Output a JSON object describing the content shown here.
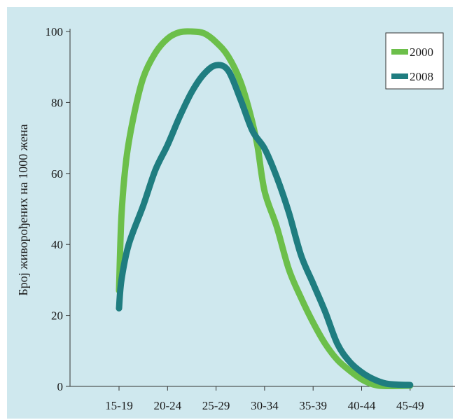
{
  "chart_data": {
    "type": "line",
    "title": "",
    "xlabel": "",
    "ylabel": "Број живорођених на 1000 жена",
    "categories": [
      "15-19",
      "20-24",
      "25-29",
      "30-34",
      "35-39",
      "40-44",
      "45-49"
    ],
    "ylim": [
      0,
      100
    ],
    "yticks": [
      0,
      20,
      40,
      60,
      80,
      100
    ],
    "grid": false,
    "legend_position": "top-right",
    "series": [
      {
        "name": "2000",
        "color": "#6cbf4a",
        "points": [
          [
            0.0,
            27
          ],
          [
            0.05,
            48
          ],
          [
            0.15,
            64
          ],
          [
            0.3,
            76
          ],
          [
            0.5,
            87
          ],
          [
            0.75,
            94
          ],
          [
            1.0,
            98
          ],
          [
            1.25,
            99.8
          ],
          [
            1.5,
            100
          ],
          [
            1.75,
            99.5
          ],
          [
            2.0,
            97
          ],
          [
            2.25,
            93
          ],
          [
            2.5,
            86
          ],
          [
            2.7,
            77
          ],
          [
            2.85,
            68
          ],
          [
            3.0,
            55
          ],
          [
            3.25,
            45
          ],
          [
            3.5,
            33
          ],
          [
            3.75,
            25
          ],
          [
            4.0,
            18
          ],
          [
            4.25,
            12
          ],
          [
            4.5,
            7.5
          ],
          [
            4.75,
            4.5
          ],
          [
            5.0,
            2
          ],
          [
            5.25,
            0.5
          ],
          [
            5.5,
            0.1
          ],
          [
            6.0,
            0.2
          ]
        ]
      },
      {
        "name": "2008",
        "color": "#1f7d80",
        "points": [
          [
            0.0,
            22
          ],
          [
            0.05,
            30
          ],
          [
            0.2,
            40
          ],
          [
            0.5,
            51
          ],
          [
            0.75,
            61
          ],
          [
            1.0,
            68
          ],
          [
            1.25,
            76
          ],
          [
            1.5,
            83
          ],
          [
            1.75,
            88
          ],
          [
            2.0,
            90.5
          ],
          [
            2.25,
            89
          ],
          [
            2.5,
            81
          ],
          [
            2.75,
            72
          ],
          [
            3.0,
            67
          ],
          [
            3.25,
            59
          ],
          [
            3.5,
            49
          ],
          [
            3.75,
            37
          ],
          [
            4.0,
            29
          ],
          [
            4.25,
            21
          ],
          [
            4.5,
            12
          ],
          [
            4.75,
            7
          ],
          [
            5.0,
            4
          ],
          [
            5.25,
            2
          ],
          [
            5.5,
            0.8
          ],
          [
            5.75,
            0.5
          ],
          [
            6.0,
            0.4
          ]
        ]
      }
    ]
  }
}
